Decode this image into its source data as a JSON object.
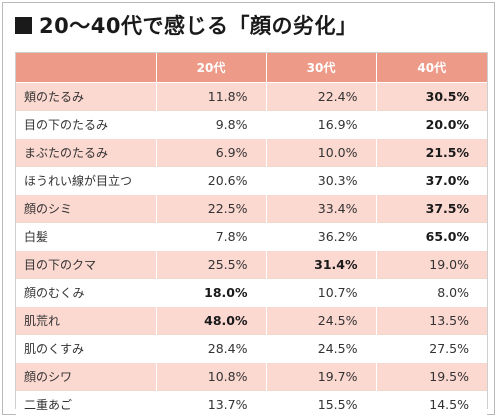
{
  "title": "20〜40代で感じる「顔の劣化」",
  "headers": [
    "",
    "20代",
    "30代",
    "40代"
  ],
  "rows": [
    {
      "label": "頬のたるみ",
      "values": [
        "11.8%",
        "22.4%",
        "30.5%"
      ],
      "bold": [
        false,
        false,
        true
      ]
    },
    {
      "label": "目の下のたるみ",
      "values": [
        "9.8%",
        "16.9%",
        "20.0%"
      ],
      "bold": [
        false,
        false,
        true
      ]
    },
    {
      "label": "まぶたのたるみ",
      "values": [
        "6.9%",
        "10.0%",
        "21.5%"
      ],
      "bold": [
        false,
        false,
        true
      ]
    },
    {
      "label": "ほうれい線が目立つ",
      "values": [
        "20.6%",
        "30.3%",
        "37.0%"
      ],
      "bold": [
        false,
        false,
        true
      ]
    },
    {
      "label": "顔のシミ",
      "values": [
        "22.5%",
        "33.4%",
        "37.5%"
      ],
      "bold": [
        false,
        false,
        true
      ]
    },
    {
      "label": "白髪",
      "values": [
        "7.8%",
        "36.2%",
        "65.0%"
      ],
      "bold": [
        false,
        false,
        true
      ]
    },
    {
      "label": "目の下のクマ",
      "values": [
        "25.5%",
        "31.4%",
        "19.0%"
      ],
      "bold": [
        false,
        true,
        false
      ]
    },
    {
      "label": "顔のむくみ",
      "values": [
        "18.0%",
        "10.7%",
        "8.0%"
      ],
      "bold": [
        true,
        false,
        false
      ]
    },
    {
      "label": "肌荒れ",
      "values": [
        "48.0%",
        "24.5%",
        "13.5%"
      ],
      "bold": [
        true,
        false,
        false
      ]
    },
    {
      "label": "肌のくすみ",
      "values": [
        "28.4%",
        "24.5%",
        "27.5%"
      ],
      "bold": [
        false,
        false,
        false
      ]
    },
    {
      "label": "顔のシワ",
      "values": [
        "10.8%",
        "19.7%",
        "19.5%"
      ],
      "bold": [
        false,
        false,
        false
      ]
    },
    {
      "label": "二重あご",
      "values": [
        "13.7%",
        "15.5%",
        "14.5%"
      ],
      "bold": [
        false,
        false,
        false
      ]
    }
  ],
  "colors": {
    "header_bg": "#ee9a88",
    "stripe_bg": "#fbd8d0",
    "header_text": "#ffffff"
  }
}
